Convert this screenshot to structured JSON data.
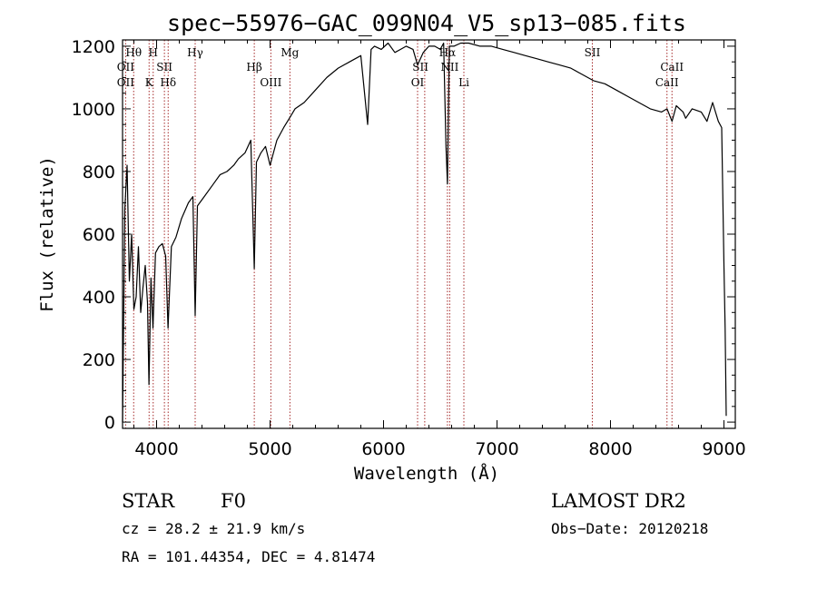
{
  "chart_data": {
    "type": "line",
    "title": "spec−55976−GAC_099N04_V5_sp13−085.fits",
    "xlabel": "Wavelength (Å)",
    "ylabel": "Flux (relative)",
    "xlim": [
      3700,
      9100
    ],
    "ylim": [
      -20,
      1220
    ],
    "x_ticks": [
      4000,
      5000,
      6000,
      7000,
      8000,
      9000
    ],
    "y_ticks": [
      0,
      200,
      400,
      600,
      800,
      1000,
      1200
    ],
    "grid": false,
    "series": [
      {
        "color": "#000000",
        "x": [
          3700,
          3720,
          3740,
          3760,
          3780,
          3800,
          3820,
          3840,
          3860,
          3880,
          3900,
          3920,
          3933,
          3950,
          3968,
          3990,
          4020,
          4050,
          4080,
          4101,
          4130,
          4170,
          4220,
          4280,
          4320,
          4340,
          4360,
          4420,
          4500,
          4560,
          4620,
          4680,
          4720,
          4780,
          4830,
          4861,
          4880,
          4920,
          4960,
          5000,
          5060,
          5120,
          5170,
          5220,
          5300,
          5400,
          5500,
          5600,
          5700,
          5800,
          5860,
          5890,
          5920,
          5980,
          6040,
          6100,
          6150,
          6200,
          6260,
          6300,
          6350,
          6400,
          6450,
          6500,
          6530,
          6550,
          6563,
          6580,
          6620,
          6680,
          6750,
          6850,
          6950,
          7050,
          7150,
          7250,
          7350,
          7450,
          7550,
          7650,
          7750,
          7850,
          7950,
          8050,
          8150,
          8250,
          8350,
          8450,
          8498,
          8542,
          8580,
          8640,
          8662,
          8720,
          8800,
          8850,
          8900,
          8950,
          8980,
          9000,
          9010,
          9020
        ],
        "values": [
          0,
          680,
          820,
          450,
          600,
          360,
          400,
          560,
          350,
          430,
          500,
          380,
          120,
          460,
          300,
          540,
          560,
          570,
          530,
          300,
          560,
          590,
          650,
          700,
          720,
          340,
          690,
          720,
          760,
          790,
          800,
          820,
          840,
          860,
          900,
          490,
          830,
          860,
          880,
          820,
          900,
          940,
          970,
          1000,
          1020,
          1060,
          1100,
          1130,
          1150,
          1170,
          950,
          1190,
          1200,
          1190,
          1210,
          1180,
          1190,
          1200,
          1190,
          1140,
          1180,
          1200,
          1200,
          1190,
          1210,
          880,
          760,
          1200,
          1200,
          1210,
          1210,
          1200,
          1200,
          1190,
          1180,
          1170,
          1160,
          1150,
          1140,
          1130,
          1110,
          1090,
          1080,
          1060,
          1040,
          1020,
          1000,
          990,
          1000,
          960,
          1010,
          990,
          970,
          1000,
          990,
          960,
          1020,
          960,
          940,
          500,
          300,
          20
        ]
      }
    ],
    "annotations": {
      "upper": [
        {
          "label": "Hθ",
          "x": 3798
        },
        {
          "label": "OII",
          "x": 3727
        },
        {
          "label": "H",
          "x": 3970
        },
        {
          "label": "SII",
          "x": 4069
        },
        {
          "label": "Hγ",
          "x": 4340
        },
        {
          "label": "Hβ",
          "x": 4861
        },
        {
          "label": "Mg",
          "x": 5175
        },
        {
          "label": "SII",
          "x": 6325
        },
        {
          "label": "Hα",
          "x": 6563
        },
        {
          "label": "NII",
          "x": 6583
        },
        {
          "label": "SII",
          "x": 7840
        },
        {
          "label": "CaII",
          "x": 8542
        }
      ],
      "lower": [
        {
          "label": "OII",
          "x": 3727
        },
        {
          "label": "K",
          "x": 3934
        },
        {
          "label": "Hδ",
          "x": 4102
        },
        {
          "label": "OIII",
          "x": 5007
        },
        {
          "label": "OI",
          "x": 6300
        },
        {
          "label": "Li",
          "x": 6708
        },
        {
          "label": "CaII",
          "x": 8498
        }
      ],
      "line_positions": [
        3727,
        3798,
        3934,
        3970,
        4069,
        4102,
        4340,
        4861,
        5007,
        5175,
        6300,
        6363,
        6563,
        6583,
        6708,
        7840,
        8498,
        8542
      ]
    }
  },
  "info": {
    "object_class": "STAR",
    "subclass": "F0",
    "survey": "LAMOST DR2",
    "redshift": "cz = 28.2 ± 21.9 km/s",
    "obs_date": "Obs−Date: 20120218",
    "coords": "RA = 101.44354, DEC =   4.81474"
  },
  "colors": {
    "spectrum": "#000000",
    "line_markers": "#a52a2a",
    "axes": "#000000"
  }
}
